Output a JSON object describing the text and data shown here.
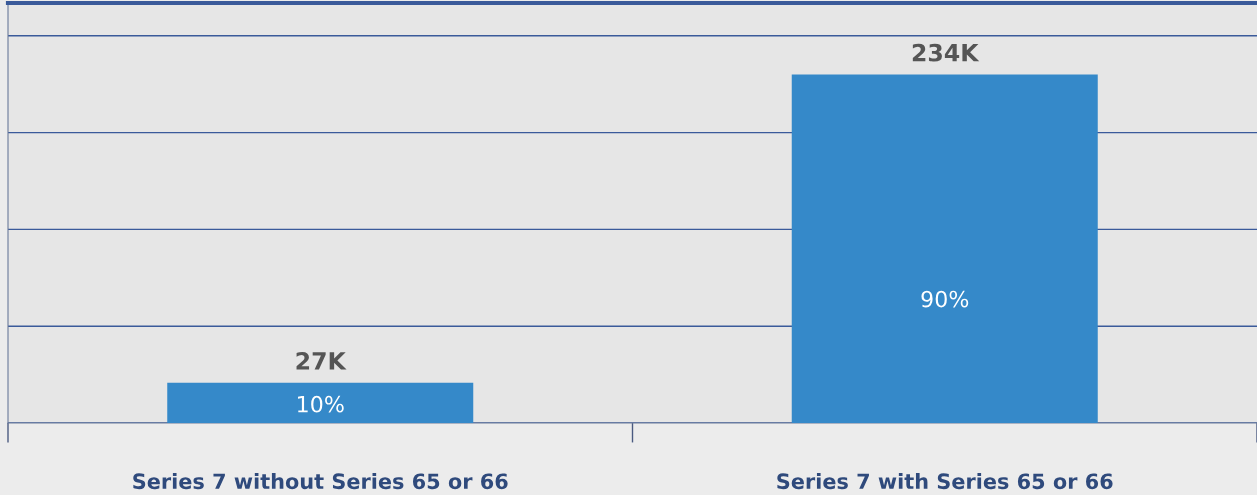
{
  "chart_data": {
    "type": "bar",
    "categories": [
      "Series 7 without Series 65 or 66",
      "Series 7 with Series 65 or 66"
    ],
    "values": [
      27000,
      234000
    ],
    "value_labels": [
      "27K",
      "234K"
    ],
    "color": "#3589c9",
    "ylim": [
      0,
      282000
    ],
    "yticks": [
      {
        "value": 0,
        "label": null
      },
      {
        "value": 65000,
        "label": null
      },
      {
        "value": 130000,
        "label": null
      },
      {
        "value": 195000,
        "label": null
      },
      {
        "value": 260000,
        "label": null
      }
    ],
    "tick_labels": "x",
    "grid": "y",
    "annotations": [
      "10%",
      "90%"
    ]
  }
}
